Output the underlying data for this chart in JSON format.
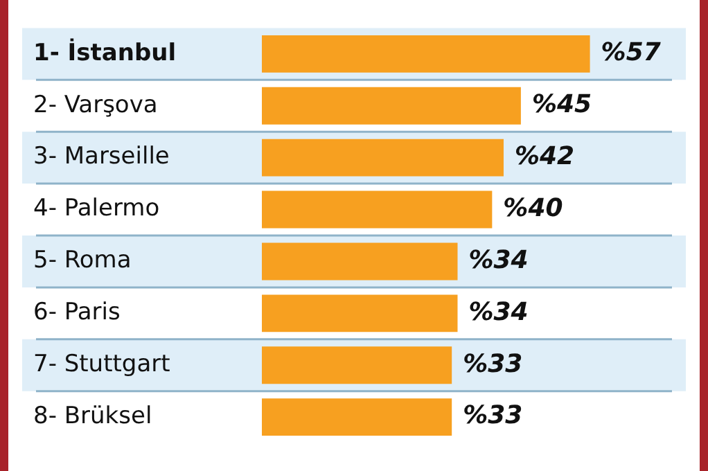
{
  "chart_data": {
    "type": "bar",
    "orientation": "horizontal",
    "categories": [
      "1- İstanbul",
      "2- Varşova",
      "3- Marseille",
      "4- Palermo",
      "5- Roma",
      "6- Paris",
      "7- Stuttgart",
      "8- Brüksel"
    ],
    "values": [
      57,
      45,
      42,
      40,
      34,
      34,
      33,
      33
    ],
    "value_labels": [
      "%57",
      "%45",
      "%42",
      "%40",
      "%34",
      "%34",
      "%33",
      "%33"
    ],
    "color": "#f7a020",
    "grid": false,
    "legend": false,
    "tick_labels": "y"
  }
}
